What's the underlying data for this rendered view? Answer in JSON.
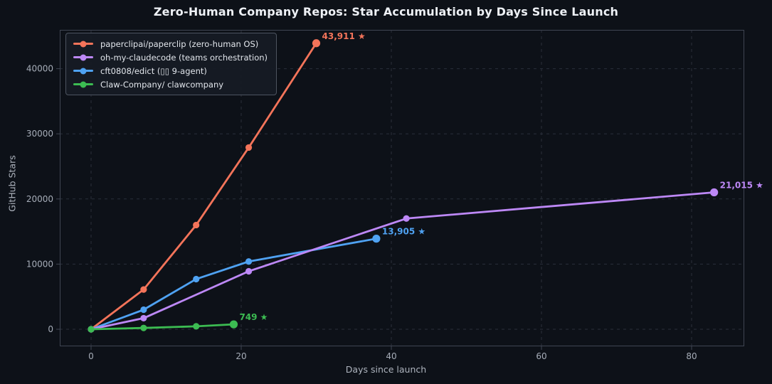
{
  "figure": {
    "background_color": "#0d1118",
    "grid_color": "#2a2f3a",
    "spine_color": "#3f4552",
    "tick_label_color": "#a6adb8",
    "axis_label_color": "#aeb4be",
    "title_color": "#eef1f6"
  },
  "chart_data": {
    "type": "line",
    "title": "Zero-Human Company Repos: Star Accumulation by Days Since Launch",
    "xlabel": "Days since launch",
    "ylabel": "GitHub Stars",
    "xlim": [
      -4.2,
      87
    ],
    "ylim": [
      -2600,
      46000
    ],
    "x_ticks": [
      0,
      20,
      40,
      60,
      80
    ],
    "y_ticks": [
      0,
      10000,
      20000,
      30000,
      40000
    ],
    "grid": "dashed-both-axes",
    "legend_position": "upper-left",
    "series": [
      {
        "name": "paperclipai/paperclip (zero-human OS)",
        "color": "#f4745a",
        "x": [
          0,
          7,
          14,
          21,
          30
        ],
        "values": [
          0,
          6100,
          16000,
          27900,
          43911
        ],
        "annotation": "43,911 ★"
      },
      {
        "name": "oh-my-claudecode (teams orchestration)",
        "color": "#bd88f6",
        "x": [
          0,
          7,
          21,
          42,
          83
        ],
        "values": [
          0,
          1700,
          8900,
          17000,
          21015
        ],
        "annotation": "21,015 ★"
      },
      {
        "name": "cft0808/edict (▯▯ 9-agent)",
        "color": "#4fa2f2",
        "x": [
          0,
          7,
          14,
          21,
          38
        ],
        "values": [
          0,
          3000,
          7700,
          10400,
          13905
        ],
        "annotation": "13,905 ★"
      },
      {
        "name": "Claw-Company/ clawcompany",
        "color": "#3cbc52",
        "x": [
          0,
          7,
          14,
          19
        ],
        "values": [
          0,
          200,
          450,
          749
        ],
        "annotation": "749 ★"
      }
    ]
  }
}
